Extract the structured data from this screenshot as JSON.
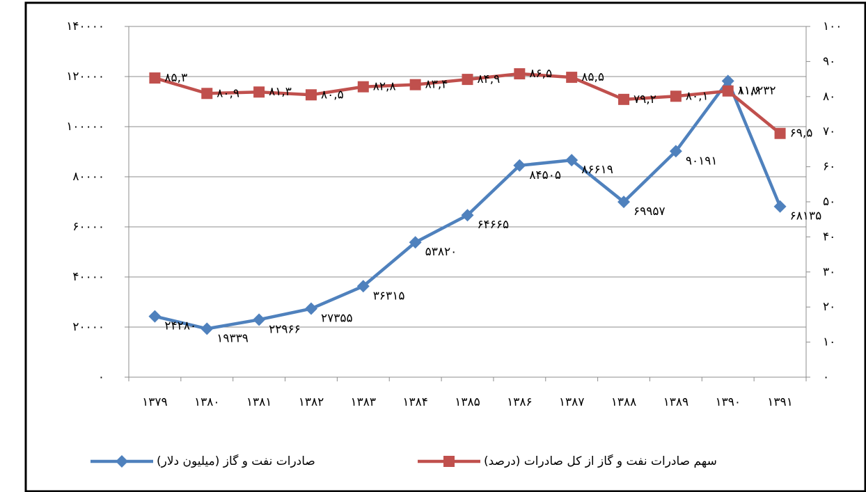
{
  "chart_data": {
    "type": "line",
    "categories": [
      "۱۳۷۹",
      "۱۳۸۰",
      "۱۳۸۱",
      "۱۳۸۲",
      "۱۳۸۳",
      "۱۳۸۴",
      "۱۳۸۵",
      "۱۳۸۶",
      "۱۳۸۷",
      "۱۳۸۸",
      "۱۳۸۹",
      "۱۳۹۰",
      "۱۳۹۱"
    ],
    "series": [
      {
        "name": "صادرات نفت و گاز (میلیون دلار)",
        "color": "#4f81bd",
        "marker": "diamond",
        "values": [
          24280,
          19339,
          22966,
          27355,
          36315,
          53820,
          64665,
          84505,
          86619,
          69957,
          90191,
          118232,
          68135
        ],
        "value_labels": [
          "۲۴۲۸۰",
          "۱۹۳۳۹",
          "۲۲۹۶۶",
          "۲۷۳۵۵",
          "۳۶۳۱۵",
          "۵۳۸۲۰",
          "۶۴۶۶۵",
          "۸۴۵۰۵",
          "۸۶۶۱۹",
          "۶۹۹۵۷",
          "۹۰۱۹۱",
          "۱۱۸۲۳۲",
          "۶۸۱۳۵"
        ]
      },
      {
        "name": "سهم صادرات نفت و گاز از کل صادرات (درصد)",
        "color": "#c0504d",
        "marker": "square",
        "axis": "y2",
        "values": [
          85.3,
          80.9,
          81.3,
          80.5,
          82.8,
          83.4,
          84.9,
          86.5,
          85.5,
          79.2,
          80.1,
          81.6,
          69.5
        ],
        "value_labels": [
          "۸۵,۳",
          "۸۰,۹",
          "۸۱,۳",
          "۸۰,۵",
          "۸۲,۸",
          "۸۳,۴",
          "۸۴,۹",
          "۸۶,۵",
          "۸۵,۵",
          "۷۹,۲",
          "۸۰,۱",
          "۸۱,۶",
          "۶۹,۵"
        ]
      }
    ],
    "ylim": [
      0,
      140000
    ],
    "yticks": [
      {
        "value": 0,
        "label": "۰"
      },
      {
        "value": 20000,
        "label": "۲۰۰۰۰"
      },
      {
        "value": 40000,
        "label": "۴۰۰۰۰"
      },
      {
        "value": 60000,
        "label": "۶۰۰۰۰"
      },
      {
        "value": 80000,
        "label": "۸۰۰۰۰"
      },
      {
        "value": 100000,
        "label": "۱۰۰۰۰۰"
      },
      {
        "value": 120000,
        "label": "۱۲۰۰۰۰"
      },
      {
        "value": 140000,
        "label": "۱۴۰۰۰۰"
      }
    ],
    "y2lim": [
      0,
      100
    ],
    "y2ticks": [
      {
        "value": 0,
        "label": "۰"
      },
      {
        "value": 10,
        "label": "۱۰"
      },
      {
        "value": 20,
        "label": "۲۰"
      },
      {
        "value": 30,
        "label": "۳۰"
      },
      {
        "value": 40,
        "label": "۴۰"
      },
      {
        "value": 50,
        "label": "۵۰"
      },
      {
        "value": 60,
        "label": "۶۰"
      },
      {
        "value": 70,
        "label": "۷۰"
      },
      {
        "value": 80,
        "label": "۸۰"
      },
      {
        "value": 90,
        "label": "۹۰"
      },
      {
        "value": 100,
        "label": "۱۰۰"
      }
    ],
    "grid": true,
    "legend": "bottom"
  }
}
